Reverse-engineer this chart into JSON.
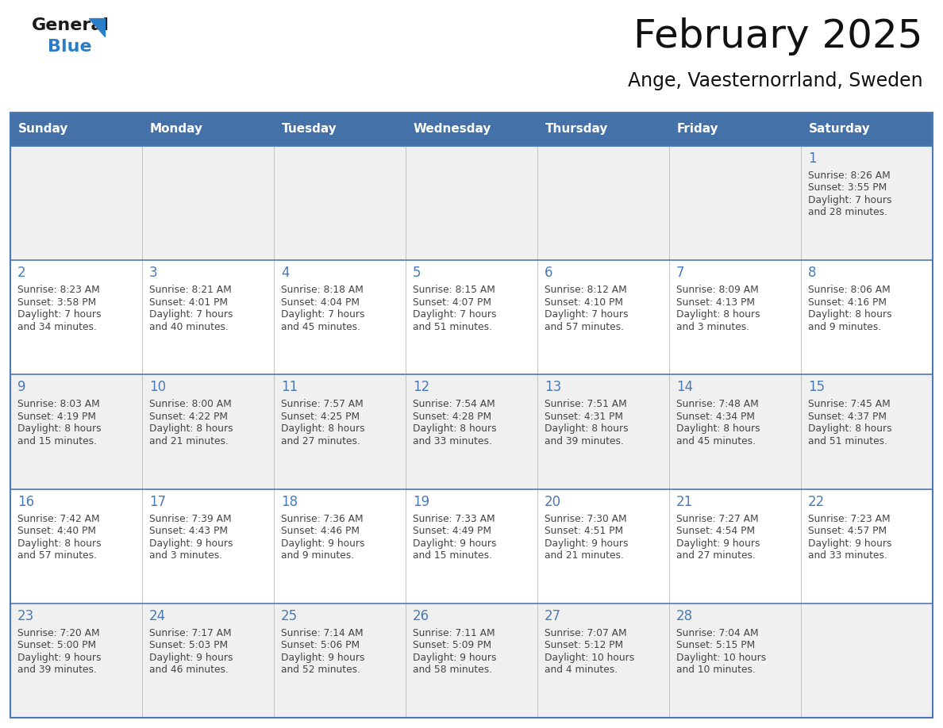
{
  "title": "February 2025",
  "subtitle": "Ange, Vaesternorrland, Sweden",
  "header_bg_color": "#4472a8",
  "header_text_color": "#ffffff",
  "row_bg_even": "#f0f0f0",
  "row_bg_odd": "#ffffff",
  "day_headers": [
    "Sunday",
    "Monday",
    "Tuesday",
    "Wednesday",
    "Thursday",
    "Friday",
    "Saturday"
  ],
  "cell_border_color": "#4a7ab5",
  "day_number_color": "#4a7ab5",
  "text_color": "#444444",
  "logo_general_color": "#1a1a1a",
  "logo_blue_color": "#2a7dc9",
  "weeks": [
    {
      "days": [
        {
          "date": null,
          "sunrise": null,
          "sunset": null,
          "daylight": null
        },
        {
          "date": null,
          "sunrise": null,
          "sunset": null,
          "daylight": null
        },
        {
          "date": null,
          "sunrise": null,
          "sunset": null,
          "daylight": null
        },
        {
          "date": null,
          "sunrise": null,
          "sunset": null,
          "daylight": null
        },
        {
          "date": null,
          "sunrise": null,
          "sunset": null,
          "daylight": null
        },
        {
          "date": null,
          "sunrise": null,
          "sunset": null,
          "daylight": null
        },
        {
          "date": "1",
          "sunrise": "8:26 AM",
          "sunset": "3:55 PM",
          "daylight": "7 hours and 28 minutes."
        }
      ]
    },
    {
      "days": [
        {
          "date": "2",
          "sunrise": "8:23 AM",
          "sunset": "3:58 PM",
          "daylight": "7 hours and 34 minutes."
        },
        {
          "date": "3",
          "sunrise": "8:21 AM",
          "sunset": "4:01 PM",
          "daylight": "7 hours and 40 minutes."
        },
        {
          "date": "4",
          "sunrise": "8:18 AM",
          "sunset": "4:04 PM",
          "daylight": "7 hours and 45 minutes."
        },
        {
          "date": "5",
          "sunrise": "8:15 AM",
          "sunset": "4:07 PM",
          "daylight": "7 hours and 51 minutes."
        },
        {
          "date": "6",
          "sunrise": "8:12 AM",
          "sunset": "4:10 PM",
          "daylight": "7 hours and 57 minutes."
        },
        {
          "date": "7",
          "sunrise": "8:09 AM",
          "sunset": "4:13 PM",
          "daylight": "8 hours and 3 minutes."
        },
        {
          "date": "8",
          "sunrise": "8:06 AM",
          "sunset": "4:16 PM",
          "daylight": "8 hours and 9 minutes."
        }
      ]
    },
    {
      "days": [
        {
          "date": "9",
          "sunrise": "8:03 AM",
          "sunset": "4:19 PM",
          "daylight": "8 hours and 15 minutes."
        },
        {
          "date": "10",
          "sunrise": "8:00 AM",
          "sunset": "4:22 PM",
          "daylight": "8 hours and 21 minutes."
        },
        {
          "date": "11",
          "sunrise": "7:57 AM",
          "sunset": "4:25 PM",
          "daylight": "8 hours and 27 minutes."
        },
        {
          "date": "12",
          "sunrise": "7:54 AM",
          "sunset": "4:28 PM",
          "daylight": "8 hours and 33 minutes."
        },
        {
          "date": "13",
          "sunrise": "7:51 AM",
          "sunset": "4:31 PM",
          "daylight": "8 hours and 39 minutes."
        },
        {
          "date": "14",
          "sunrise": "7:48 AM",
          "sunset": "4:34 PM",
          "daylight": "8 hours and 45 minutes."
        },
        {
          "date": "15",
          "sunrise": "7:45 AM",
          "sunset": "4:37 PM",
          "daylight": "8 hours and 51 minutes."
        }
      ]
    },
    {
      "days": [
        {
          "date": "16",
          "sunrise": "7:42 AM",
          "sunset": "4:40 PM",
          "daylight": "8 hours and 57 minutes."
        },
        {
          "date": "17",
          "sunrise": "7:39 AM",
          "sunset": "4:43 PM",
          "daylight": "9 hours and 3 minutes."
        },
        {
          "date": "18",
          "sunrise": "7:36 AM",
          "sunset": "4:46 PM",
          "daylight": "9 hours and 9 minutes."
        },
        {
          "date": "19",
          "sunrise": "7:33 AM",
          "sunset": "4:49 PM",
          "daylight": "9 hours and 15 minutes."
        },
        {
          "date": "20",
          "sunrise": "7:30 AM",
          "sunset": "4:51 PM",
          "daylight": "9 hours and 21 minutes."
        },
        {
          "date": "21",
          "sunrise": "7:27 AM",
          "sunset": "4:54 PM",
          "daylight": "9 hours and 27 minutes."
        },
        {
          "date": "22",
          "sunrise": "7:23 AM",
          "sunset": "4:57 PM",
          "daylight": "9 hours and 33 minutes."
        }
      ]
    },
    {
      "days": [
        {
          "date": "23",
          "sunrise": "7:20 AM",
          "sunset": "5:00 PM",
          "daylight": "9 hours and 39 minutes."
        },
        {
          "date": "24",
          "sunrise": "7:17 AM",
          "sunset": "5:03 PM",
          "daylight": "9 hours and 46 minutes."
        },
        {
          "date": "25",
          "sunrise": "7:14 AM",
          "sunset": "5:06 PM",
          "daylight": "9 hours and 52 minutes."
        },
        {
          "date": "26",
          "sunrise": "7:11 AM",
          "sunset": "5:09 PM",
          "daylight": "9 hours and 58 minutes."
        },
        {
          "date": "27",
          "sunrise": "7:07 AM",
          "sunset": "5:12 PM",
          "daylight": "10 hours and 4 minutes."
        },
        {
          "date": "28",
          "sunrise": "7:04 AM",
          "sunset": "5:15 PM",
          "daylight": "10 hours and 10 minutes."
        },
        {
          "date": null,
          "sunrise": null,
          "sunset": null,
          "daylight": null
        }
      ]
    }
  ]
}
